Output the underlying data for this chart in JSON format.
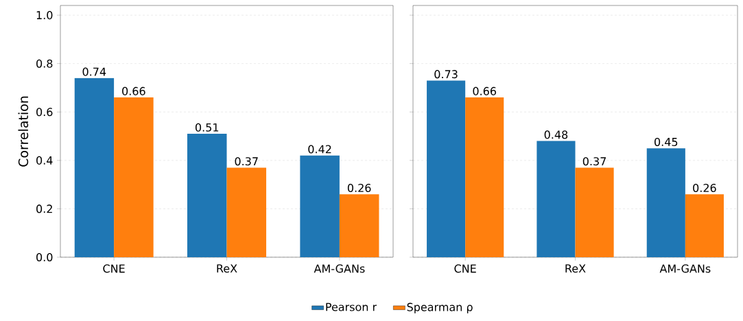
{
  "chart_data": [
    {
      "type": "bar",
      "ylabel": "Correlation",
      "categories": [
        "CNE",
        "ReX",
        "AM-GANs"
      ],
      "series": [
        {
          "name": "Pearson r",
          "color": "#1f77b4",
          "values": [
            0.74,
            0.51,
            0.42
          ]
        },
        {
          "name": "Spearman ρ",
          "color": "#ff7f0e",
          "values": [
            0.66,
            0.37,
            0.26
          ]
        }
      ],
      "ylim": [
        0,
        1.04
      ],
      "yticks": [
        {
          "value": 0,
          "label": "0.0"
        },
        {
          "value": 0.2,
          "label": "0.2"
        },
        {
          "value": 0.4,
          "label": "0.4"
        },
        {
          "value": 0.6,
          "label": "0.6"
        },
        {
          "value": 0.8,
          "label": "0.8"
        },
        {
          "value": 1,
          "label": "1.0"
        }
      ],
      "grid": "y",
      "data_labels": true,
      "legend": "bottom"
    },
    {
      "type": "bar",
      "categories": [
        "CNE",
        "ReX",
        "AM-GANs"
      ],
      "series": [
        {
          "color": "#1f77b4",
          "values": [
            0.73,
            0.48,
            0.45
          ]
        },
        {
          "color": "#ff7f0e",
          "values": [
            0.66,
            0.37,
            0.26
          ]
        }
      ],
      "ylim": [
        0,
        1.04
      ],
      "yticks": [
        {
          "value": 0,
          "label": null
        },
        {
          "value": 0.2,
          "label": null
        },
        {
          "value": 0.4,
          "label": null
        },
        {
          "value": 0.6,
          "label": null
        },
        {
          "value": 0.8,
          "label": null
        },
        {
          "value": 1,
          "label": null
        }
      ],
      "grid": "y",
      "data_labels": true,
      "tick_labels": "x"
    }
  ]
}
